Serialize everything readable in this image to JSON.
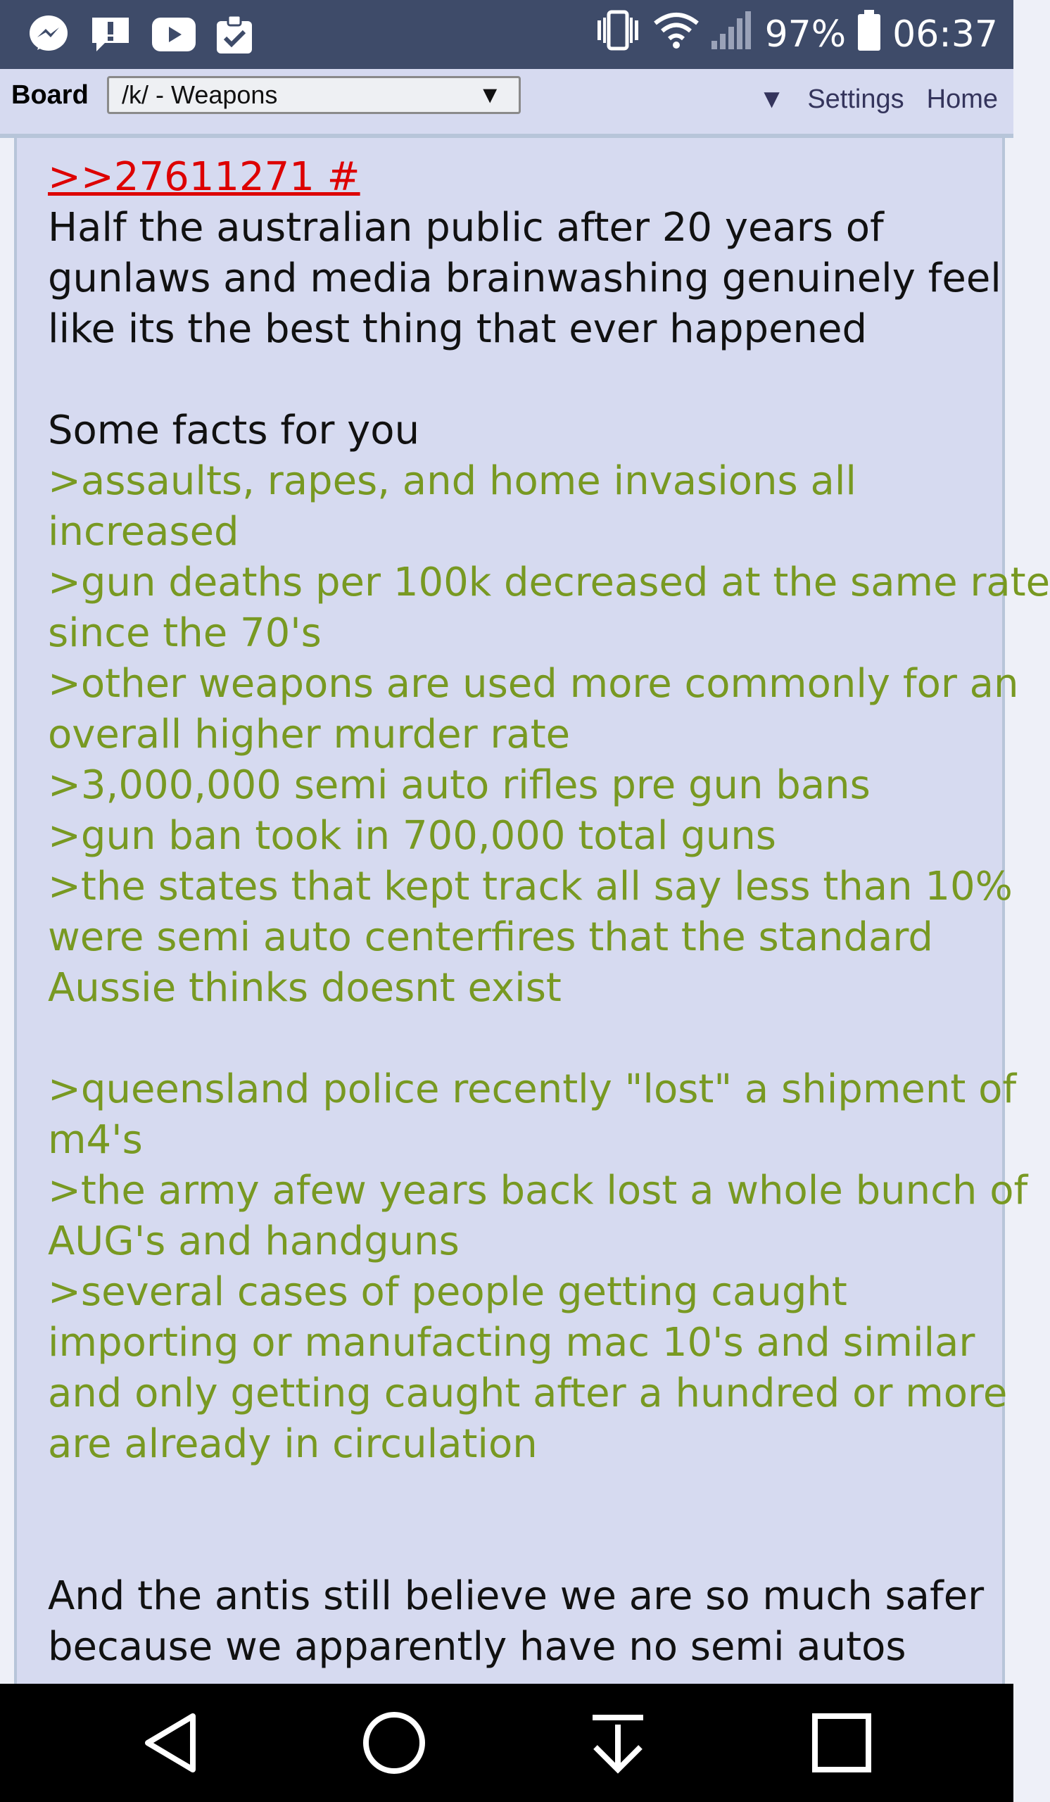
{
  "status_bar": {
    "notification_icons": [
      "messenger-icon",
      "alert-chat-icon",
      "youtube-icon",
      "clipboard-check-icon"
    ],
    "battery": "97%",
    "time": "06:37"
  },
  "board_bar": {
    "label": "Board",
    "selected_board": "/k/ - Weapons",
    "settings": "Settings",
    "home": "Home"
  },
  "post": {
    "quote_link": ">>27611271 #",
    "lines": [
      {
        "text": "Half the australian public after 20 years of",
        "green": false
      },
      {
        "text": "gunlaws and media brainwashing genuinely feel",
        "green": false
      },
      {
        "text": "like its the best thing that ever happened",
        "green": false
      },
      {
        "text": "",
        "green": false
      },
      {
        "text": "Some facts for you",
        "green": false
      },
      {
        "text": ">assaults, rapes, and home invasions all",
        "green": true
      },
      {
        "text": "increased",
        "green": true
      },
      {
        "text": ">gun deaths per 100k decreased at the same rate",
        "green": true
      },
      {
        "text": "since the 70's",
        "green": true
      },
      {
        "text": ">other weapons are used more commonly for an",
        "green": true
      },
      {
        "text": "overall higher murder rate",
        "green": true
      },
      {
        "text": ">3,000,000 semi auto rifles pre gun bans",
        "green": true
      },
      {
        "text": ">gun ban took in 700,000 total guns",
        "green": true
      },
      {
        "text": ">the states that kept track all say less than 10%",
        "green": true
      },
      {
        "text": "were semi auto centerfires that the standard",
        "green": true
      },
      {
        "text": "Aussie thinks doesnt exist",
        "green": true
      },
      {
        "text": "",
        "green": false
      },
      {
        "text": ">queensland police recently \"lost\" a shipment of",
        "green": true
      },
      {
        "text": "m4's",
        "green": true
      },
      {
        "text": ">the army afew years back lost a whole bunch of",
        "green": true
      },
      {
        "text": "AUG's and handguns",
        "green": true
      },
      {
        "text": ">several cases of people getting caught",
        "green": true
      },
      {
        "text": "importing or manufacting mac 10's and similar",
        "green": true
      },
      {
        "text": "and only getting caught after a hundred or more",
        "green": true
      },
      {
        "text": "are already in circulation",
        "green": true
      },
      {
        "text": "",
        "green": false
      },
      {
        "text": "",
        "green": false
      },
      {
        "text": "And the antis still believe we are so much safer",
        "green": false
      },
      {
        "text": "because we apparently have no semi autos",
        "green": false
      }
    ]
  },
  "nav_bar": {
    "buttons": [
      "back-icon",
      "home-circle-icon",
      "download-arrow-icon",
      "recents-square-icon"
    ]
  }
}
